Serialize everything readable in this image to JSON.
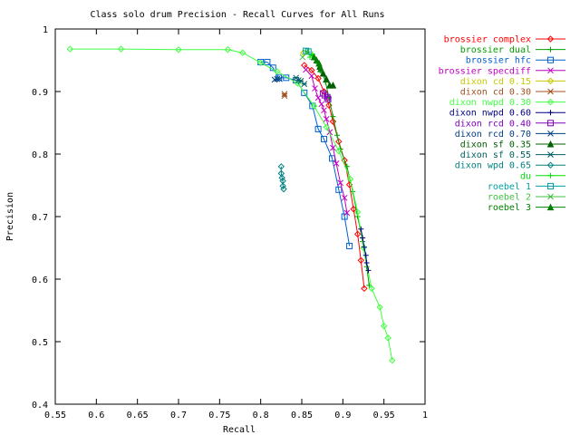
{
  "chart_data": {
    "type": "line",
    "title": "Class solo drum Precision - Recall Curves for All Runs",
    "xlabel": "Recall",
    "ylabel": "Precision",
    "xlim": [
      0.55,
      1.0
    ],
    "ylim": [
      0.4,
      1.0
    ],
    "x_ticks": [
      "0.55",
      "0.6",
      "0.65",
      "0.7",
      "0.75",
      "0.8",
      "0.85",
      "0.9",
      "0.95",
      "1"
    ],
    "y_ticks": [
      "0.4",
      "0.5",
      "0.6",
      "0.7",
      "0.8",
      "0.9",
      "1"
    ],
    "legend_position": "right",
    "series": [
      {
        "name": "brossier complex",
        "color": "#ff0000",
        "marker": "diamond",
        "points": [
          [
            0.853,
            0.942
          ],
          [
            0.862,
            0.934
          ],
          [
            0.87,
            0.921
          ],
          [
            0.877,
            0.9
          ],
          [
            0.883,
            0.878
          ],
          [
            0.888,
            0.852
          ],
          [
            0.895,
            0.82
          ],
          [
            0.902,
            0.79
          ],
          [
            0.908,
            0.751
          ],
          [
            0.913,
            0.712
          ],
          [
            0.918,
            0.672
          ],
          [
            0.922,
            0.63
          ],
          [
            0.926,
            0.585
          ]
        ]
      },
      {
        "name": "brossier dual",
        "color": "#00a000",
        "marker": "plus",
        "points": [
          [
            0.857,
            0.963
          ],
          [
            0.864,
            0.955
          ],
          [
            0.87,
            0.945
          ],
          [
            0.875,
            0.93
          ],
          [
            0.879,
            0.915
          ],
          [
            0.883,
            0.89
          ],
          [
            0.888,
            0.86
          ],
          [
            0.893,
            0.83
          ],
          [
            0.897,
            0.808
          ],
          [
            0.905,
            0.78
          ],
          [
            0.912,
            0.74
          ],
          [
            0.918,
            0.7
          ],
          [
            0.924,
            0.66
          ],
          [
            0.929,
            0.62
          ],
          [
            0.932,
            0.59
          ]
        ]
      },
      {
        "name": "brossier hfc",
        "color": "#0060d0",
        "marker": "square",
        "points": [
          [
            0.8,
            0.947
          ],
          [
            0.808,
            0.947
          ],
          [
            0.815,
            0.938
          ],
          [
            0.822,
            0.922
          ],
          [
            0.831,
            0.922
          ],
          [
            0.843,
            0.918
          ],
          [
            0.853,
            0.898
          ],
          [
            0.863,
            0.877
          ],
          [
            0.87,
            0.84
          ],
          [
            0.877,
            0.824
          ],
          [
            0.887,
            0.793
          ],
          [
            0.895,
            0.743
          ],
          [
            0.902,
            0.7
          ],
          [
            0.908,
            0.653
          ]
        ]
      },
      {
        "name": "brossier specdiff",
        "color": "#c000c0",
        "marker": "cross",
        "points": [
          [
            0.855,
            0.935
          ],
          [
            0.862,
            0.925
          ],
          [
            0.866,
            0.905
          ],
          [
            0.87,
            0.89
          ],
          [
            0.874,
            0.88
          ],
          [
            0.877,
            0.87
          ],
          [
            0.88,
            0.856
          ],
          [
            0.884,
            0.835
          ],
          [
            0.888,
            0.81
          ],
          [
            0.892,
            0.785
          ],
          [
            0.897,
            0.754
          ],
          [
            0.902,
            0.73
          ],
          [
            0.905,
            0.706
          ]
        ]
      },
      {
        "name": "dixon cd 0.15",
        "color": "#c8c800",
        "marker": "diamond",
        "points": [
          [
            0.852,
            0.962
          ]
        ]
      },
      {
        "name": "dixon cd 0.30",
        "color": "#a05020",
        "marker": "asterisk",
        "points": [
          [
            0.829,
            0.893
          ],
          [
            0.829,
            0.896
          ]
        ]
      },
      {
        "name": "dixon nwpd 0.30",
        "color": "#40ff40",
        "marker": "diamond",
        "points": [
          [
            0.568,
            0.968
          ],
          [
            0.63,
            0.968
          ],
          [
            0.7,
            0.967
          ],
          [
            0.76,
            0.967
          ],
          [
            0.778,
            0.962
          ],
          [
            0.8,
            0.946
          ],
          [
            0.82,
            0.932
          ],
          [
            0.845,
            0.913
          ],
          [
            0.865,
            0.877
          ],
          [
            0.88,
            0.843
          ],
          [
            0.895,
            0.805
          ],
          [
            0.909,
            0.76
          ],
          [
            0.918,
            0.707
          ],
          [
            0.925,
            0.65
          ],
          [
            0.935,
            0.585
          ],
          [
            0.945,
            0.555
          ],
          [
            0.95,
            0.525
          ],
          [
            0.955,
            0.506
          ],
          [
            0.96,
            0.47
          ]
        ]
      },
      {
        "name": "dixon nwpd 0.60",
        "color": "#000080",
        "marker": "plus",
        "points": [
          [
            0.922,
            0.68
          ],
          [
            0.924,
            0.666
          ],
          [
            0.926,
            0.651
          ],
          [
            0.928,
            0.638
          ],
          [
            0.929,
            0.626
          ],
          [
            0.931,
            0.614
          ]
        ]
      },
      {
        "name": "dixon rcd 0.40",
        "color": "#8000c0",
        "marker": "square",
        "points": [
          [
            0.876,
            0.897
          ],
          [
            0.878,
            0.894
          ],
          [
            0.881,
            0.891
          ],
          [
            0.882,
            0.888
          ]
        ]
      },
      {
        "name": "dixon rcd 0.70",
        "color": "#004080",
        "marker": "cross",
        "points": [
          [
            0.817,
            0.919
          ],
          [
            0.82,
            0.92
          ],
          [
            0.823,
            0.92
          ]
        ]
      },
      {
        "name": "dixon sf 0.35",
        "color": "#006000",
        "marker": "triangle",
        "points": [
          [
            0.872,
            0.94
          ],
          [
            0.876,
            0.929
          ],
          [
            0.88,
            0.92
          ],
          [
            0.884,
            0.91
          ],
          [
            0.888,
            0.91
          ]
        ]
      },
      {
        "name": "dixon sf 0.55",
        "color": "#006060",
        "marker": "asterisk",
        "points": [
          [
            0.843,
            0.922
          ],
          [
            0.846,
            0.918
          ],
          [
            0.849,
            0.917
          ],
          [
            0.853,
            0.912
          ]
        ]
      },
      {
        "name": "dixon wpd 0.65",
        "color": "#008080",
        "marker": "diamond",
        "points": [
          [
            0.825,
            0.78
          ],
          [
            0.825,
            0.769
          ],
          [
            0.826,
            0.762
          ],
          [
            0.827,
            0.757
          ],
          [
            0.827,
            0.749
          ],
          [
            0.828,
            0.744
          ]
        ]
      },
      {
        "name": "du",
        "color": "#00e000",
        "marker": "plus",
        "points": [
          [
            0.86,
            0.955
          ],
          [
            0.863,
            0.96
          ]
        ]
      },
      {
        "name": "roebel 1",
        "color": "#00a0a0",
        "marker": "square",
        "points": [
          [
            0.855,
            0.965
          ],
          [
            0.858,
            0.964
          ]
        ]
      },
      {
        "name": "roebel 2",
        "color": "#40c040",
        "marker": "cross",
        "points": [
          [
            0.851,
            0.955
          ],
          [
            0.856,
            0.962
          ]
        ]
      },
      {
        "name": "roebel 3",
        "color": "#008000",
        "marker": "triangle",
        "points": [
          [
            0.865,
            0.955
          ],
          [
            0.868,
            0.95
          ],
          [
            0.871,
            0.945
          ],
          [
            0.873,
            0.936
          ]
        ]
      }
    ]
  }
}
